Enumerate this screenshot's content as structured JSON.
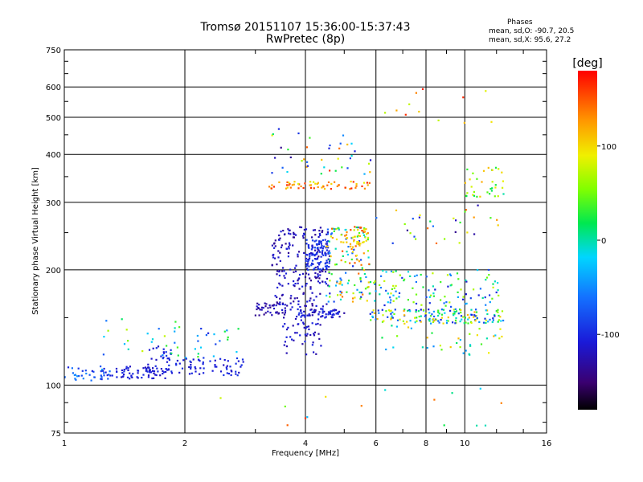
{
  "title_line1": "Tromsø 20151107 15:36:00-15:37:43",
  "title_line2": "RwPretec (8p)",
  "stats": {
    "heading": "Phases",
    "o_mode": "mean, sd,O: -90.7, 20.5",
    "x_mode": "mean, sd,X:  95.6, 27.2"
  },
  "colorbar": {
    "label": "[deg]",
    "ticks": [
      "100",
      "0",
      "-100"
    ],
    "tick_values": [
      100,
      0,
      -100
    ],
    "range": [
      -180,
      180
    ]
  },
  "chart_data": {
    "type": "scatter",
    "title": "Tromsø 20151107 15:36:00-15:37:43",
    "subtitle": "RwPretec (8p)",
    "xlabel": "Frequency [MHz]",
    "ylabel": "Stationary phase Virtual Height [km]",
    "x_scale": "log",
    "y_scale": "log",
    "xlim": [
      1,
      16
    ],
    "ylim": [
      75,
      750
    ],
    "x_ticks": [
      1,
      2,
      4,
      6,
      8,
      10,
      16
    ],
    "x_tick_labels": [
      "1",
      "2",
      "4",
      "6",
      "8",
      "10",
      "16"
    ],
    "y_ticks": [
      75,
      100,
      200,
      300,
      400,
      500,
      600,
      750
    ],
    "y_tick_labels": [
      "75",
      "100",
      "200",
      "300",
      "400",
      "500",
      "600",
      "750"
    ],
    "grid": true,
    "color_variable": "phase [deg]",
    "clusters": [
      {
        "f_range": [
          1.0,
          1.3
        ],
        "h_range": [
          102,
          112
        ],
        "phase": [
          -110,
          -40
        ],
        "n": 40
      },
      {
        "f_range": [
          1.3,
          1.8
        ],
        "h_range": [
          104,
          112
        ],
        "phase": [
          -125,
          -95
        ],
        "n": 60
      },
      {
        "f_range": [
          1.6,
          1.85
        ],
        "h_range": [
          108,
          128
        ],
        "phase": [
          -120,
          -90
        ],
        "n": 30
      },
      {
        "f_range": [
          1.8,
          2.8
        ],
        "h_range": [
          106,
          118
        ],
        "phase": [
          -120,
          -90
        ],
        "n": 70
      },
      {
        "f_range": [
          1.2,
          2.0
        ],
        "h_range": [
          118,
          150
        ],
        "phase": [
          -100,
          80
        ],
        "n": 25
      },
      {
        "f_range": [
          2.0,
          2.8
        ],
        "h_range": [
          118,
          145
        ],
        "phase": [
          -110,
          40
        ],
        "n": 20
      },
      {
        "f_range": [
          3.0,
          3.6
        ],
        "h_range": [
          152,
          165
        ],
        "phase": [
          -140,
          -110
        ],
        "n": 40
      },
      {
        "f_range": [
          3.5,
          4.4
        ],
        "h_range": [
          120,
          160
        ],
        "phase": [
          -130,
          -100
        ],
        "n": 60
      },
      {
        "f_range": [
          3.3,
          4.6
        ],
        "h_range": [
          160,
          260
        ],
        "phase": [
          -140,
          -100
        ],
        "n": 200
      },
      {
        "f_range": [
          4.0,
          4.6
        ],
        "h_range": [
          200,
          240
        ],
        "phase": [
          -110,
          -80
        ],
        "n": 100
      },
      {
        "f_range": [
          3.8,
          5.0
        ],
        "h_range": [
          150,
          158
        ],
        "phase": [
          -130,
          -90
        ],
        "n": 60
      },
      {
        "f_range": [
          4.5,
          5.8
        ],
        "h_range": [
          165,
          260
        ],
        "phase": [
          -100,
          150
        ],
        "n": 130
      },
      {
        "f_range": [
          5.0,
          5.7
        ],
        "h_range": [
          215,
          260
        ],
        "phase": [
          80,
          160
        ],
        "n": 40
      },
      {
        "f_range": [
          5.8,
          12.5
        ],
        "h_range": [
          145,
          158
        ],
        "phase": [
          -110,
          120
        ],
        "n": 160
      },
      {
        "f_range": [
          5.8,
          12.5
        ],
        "h_range": [
          160,
          200
        ],
        "phase": [
          -120,
          80
        ],
        "n": 110
      },
      {
        "f_range": [
          6.0,
          12.5
        ],
        "h_range": [
          120,
          145
        ],
        "phase": [
          -50,
          120
        ],
        "n": 40
      },
      {
        "f_range": [
          3.2,
          5.8
        ],
        "h_range": [
          325,
          340
        ],
        "phase": [
          80,
          170
        ],
        "n": 60
      },
      {
        "f_range": [
          3.2,
          6.0
        ],
        "h_range": [
          345,
          470
        ],
        "phase": [
          -140,
          170
        ],
        "n": 40
      },
      {
        "f_range": [
          10.0,
          12.5
        ],
        "h_range": [
          310,
          370
        ],
        "phase": [
          0,
          120
        ],
        "n": 35
      },
      {
        "f_range": [
          6.0,
          12.5
        ],
        "h_range": [
          230,
          300
        ],
        "phase": [
          -140,
          150
        ],
        "n": 30
      },
      {
        "f_range": [
          2.4,
          12.5
        ],
        "h_range": [
          78,
          100
        ],
        "phase": [
          -40,
          170
        ],
        "n": 15
      },
      {
        "f_range": [
          6.0,
          12.5
        ],
        "h_range": [
          480,
          640
        ],
        "phase": [
          60,
          170
        ],
        "n": 12
      }
    ]
  }
}
